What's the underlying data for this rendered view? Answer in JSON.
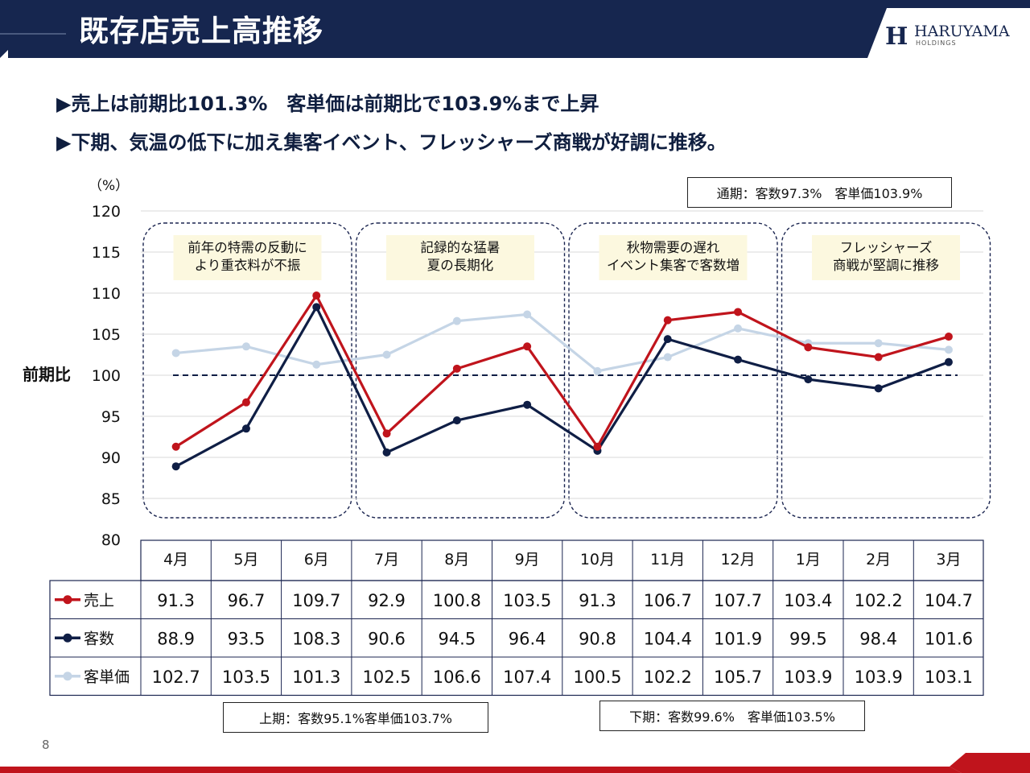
{
  "header": {
    "title": "既存店売上高推移",
    "logo_mark": "H",
    "logo_name": "HARUYAMA",
    "logo_sub": "HOLDINGS",
    "colors": {
      "navy": "#16264f",
      "red": "#c0141c"
    }
  },
  "bullets": [
    "▶売上は前期比101.3%　客単価は前期比で103.9%まで上昇",
    "▶下期、気温の低下に加え集客イベント、フレッシャーズ商戦が好調に推移。"
  ],
  "notes": {
    "full_year": "通期：客数97.3%　客単価103.9%",
    "first_half": "上期：客数95.1%客単価103.7%",
    "second_half": "下期：客数99.6%　客単価103.5%"
  },
  "page_number": "8",
  "chart_data": {
    "type": "line",
    "unit_label": "（%）",
    "ylabel": "前期比",
    "ylim": [
      80,
      120
    ],
    "yticks": [
      80,
      85,
      90,
      95,
      100,
      105,
      110,
      115,
      120
    ],
    "reference_line": 100,
    "categories": [
      "4月",
      "5月",
      "6月",
      "7月",
      "8月",
      "9月",
      "10月",
      "11月",
      "12月",
      "1月",
      "2月",
      "3月"
    ],
    "series": [
      {
        "name": "売上",
        "color": "#c0141c",
        "values": [
          91.3,
          96.7,
          109.7,
          92.9,
          100.8,
          103.5,
          91.3,
          106.7,
          107.7,
          103.4,
          102.2,
          104.7
        ]
      },
      {
        "name": "客数",
        "color": "#0f1e45",
        "values": [
          88.9,
          93.5,
          108.3,
          90.6,
          94.5,
          96.4,
          90.8,
          104.4,
          101.9,
          99.5,
          98.4,
          101.6
        ]
      },
      {
        "name": "客単価",
        "color": "#c5d5e6",
        "values": [
          102.7,
          103.5,
          101.3,
          102.5,
          106.6,
          107.4,
          100.5,
          102.2,
          105.7,
          103.9,
          103.9,
          103.1
        ]
      }
    ],
    "annotations": [
      {
        "text": [
          "前年の特需の反動に",
          "より重衣料が不振"
        ],
        "months": [
          "4月",
          "6月"
        ]
      },
      {
        "text": [
          "記録的な猛暑",
          "夏の長期化"
        ],
        "months": [
          "7月",
          "9月"
        ]
      },
      {
        "text": [
          "秋物需要の遅れ",
          "イベント集客で客数増"
        ],
        "months": [
          "10月",
          "12月"
        ]
      },
      {
        "text": [
          "フレッシャーズ",
          "商戦が堅調に推移"
        ],
        "months": [
          "1月",
          "3月"
        ]
      }
    ],
    "grid": true,
    "legend": "table-left"
  }
}
